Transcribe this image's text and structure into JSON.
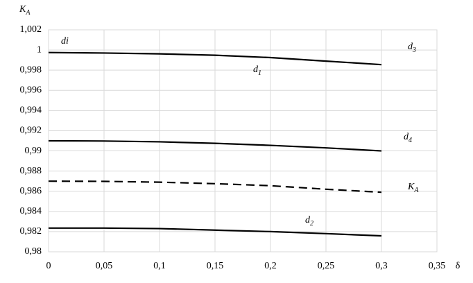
{
  "chart_data": {
    "type": "line",
    "y_label": {
      "base": "K",
      "sub": "A"
    },
    "x_label": "δ",
    "x": [
      0,
      0.05,
      0.1,
      0.15,
      0.2,
      0.25,
      0.3
    ],
    "series": [
      {
        "name": {
          "base": "d",
          "sub": "1"
        },
        "color": "#000000",
        "dash": false,
        "values": [
          0.99975,
          0.9997,
          0.99962,
          0.99948,
          0.99925,
          0.9989,
          0.99855
        ]
      },
      {
        "name": {
          "base": "d",
          "sub": "4"
        },
        "color": "#000000",
        "dash": false,
        "values": [
          0.991,
          0.99098,
          0.9909,
          0.99075,
          0.99055,
          0.9903,
          0.99
        ]
      },
      {
        "name": {
          "base": "K",
          "sub": "A"
        },
        "color": "#000000",
        "dash": true,
        "values": [
          0.987,
          0.98698,
          0.9869,
          0.98675,
          0.98655,
          0.9862,
          0.9859
        ]
      },
      {
        "name": {
          "base": "d",
          "sub": "2"
        },
        "color": "#000000",
        "dash": false,
        "values": [
          0.98235,
          0.98235,
          0.9823,
          0.98215,
          0.982,
          0.9818,
          0.98158
        ]
      }
    ],
    "annotations": [
      {
        "base": "di"
      },
      {
        "base": "d",
        "sub": "3"
      }
    ],
    "xlim": [
      0,
      0.35
    ],
    "ylim": [
      0.98,
      1.002
    ],
    "xticks": [
      0,
      {
        "value": 0.05,
        "label": "0,05"
      },
      {
        "value": 0.1,
        "label": "0,1"
      },
      {
        "value": 0.15,
        "label": "0,15"
      },
      {
        "value": 0.2,
        "label": "0,2"
      },
      {
        "value": 0.25,
        "label": "0,25"
      },
      {
        "value": 0.3,
        "label": "0,3"
      },
      {
        "value": 0.35,
        "label": "0,35"
      }
    ],
    "yticks": [
      {
        "value": 0.98,
        "label": "0,98"
      },
      {
        "value": 0.982,
        "label": "0,982"
      },
      {
        "value": 0.984,
        "label": "0,984"
      },
      {
        "value": 0.986,
        "label": "0,986"
      },
      {
        "value": 0.988,
        "label": "0,988"
      },
      {
        "value": 0.99,
        "label": "0,99"
      },
      {
        "value": 0.992,
        "label": "0,992"
      },
      {
        "value": 0.994,
        "label": "0,994"
      },
      {
        "value": 0.996,
        "label": "0,996"
      },
      {
        "value": 0.998,
        "label": "0,998"
      },
      1,
      {
        "value": 1.002,
        "label": "1,002"
      }
    ],
    "grid": true
  }
}
